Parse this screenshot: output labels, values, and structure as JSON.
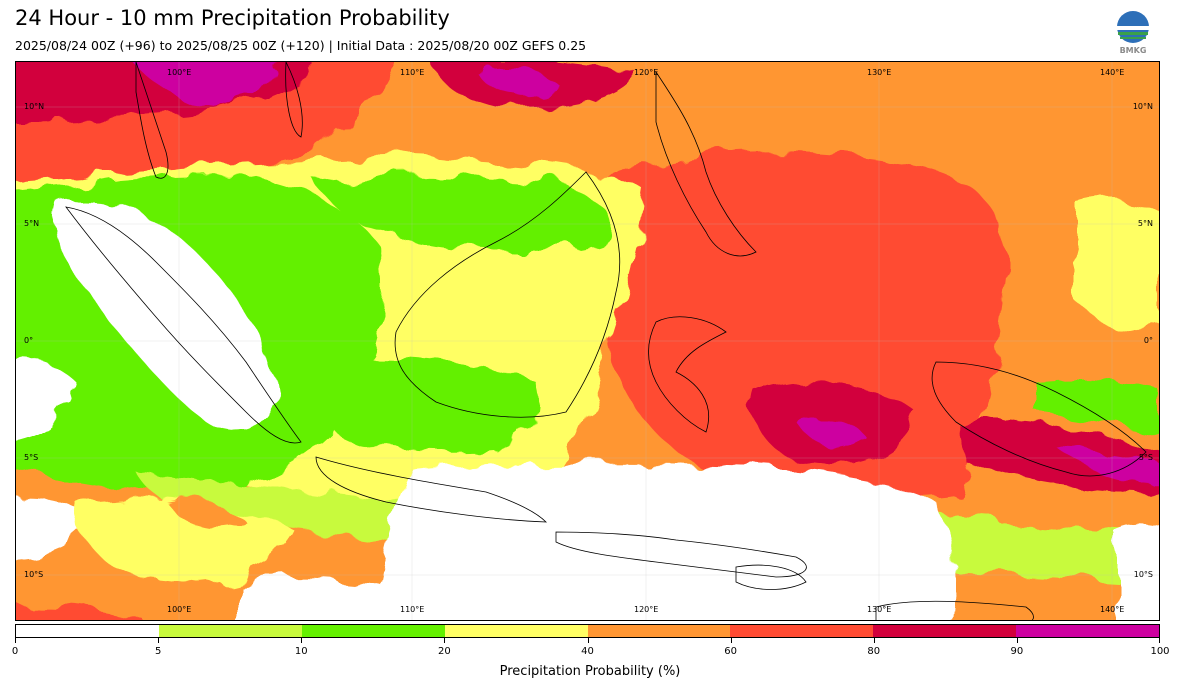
{
  "header": {
    "title": "24 Hour - 10 mm Precipitation Probability",
    "subtitle": "2025/08/24 00Z (+96) to 2025/08/25 00Z (+120) | Initial Data : 2025/08/20 00Z GEFS 0.25"
  },
  "logo": {
    "text": "BMKG",
    "icon": "bmkg-logo-icon"
  },
  "map": {
    "lon_labels": [
      "100°E",
      "110°E",
      "120°E",
      "130°E",
      "140°E"
    ],
    "lat_labels": [
      "10°N",
      "5°N",
      "0°",
      "5°S",
      "10°S"
    ],
    "background_color": "#ffffff",
    "land_color": "#ffffff",
    "coastline_color": "#000000"
  },
  "colorbar": {
    "label": "Precipitation Probability (%)",
    "ticks": [
      "0",
      "5",
      "10",
      "20",
      "40",
      "60",
      "80",
      "90",
      "100"
    ],
    "colors": [
      "#ffffff",
      "#c8fa3c",
      "#64f000",
      "#ffff64",
      "#ff9632",
      "#ff4b32",
      "#d2003c",
      "#cd00a0"
    ]
  }
}
